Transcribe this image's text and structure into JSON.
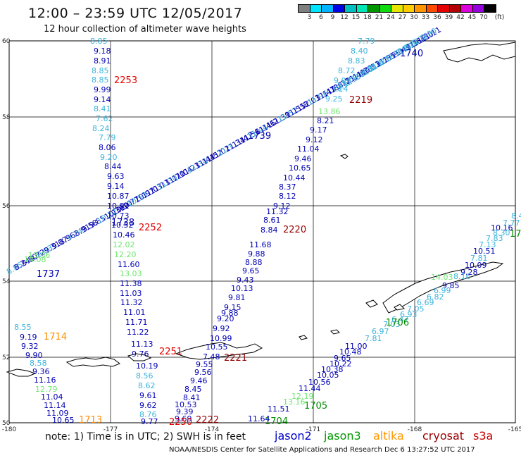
{
  "header": {
    "title": "12:00 – 23:59 UTC 12/05/2017",
    "subtitle": "12 hour collection of altimeter wave heights"
  },
  "color_scale": {
    "unit_label": "(ft)",
    "labels": [
      "3",
      "6",
      "9",
      "12",
      "15",
      "18",
      "21",
      "24",
      "27",
      "30",
      "33",
      "36",
      "39",
      "42",
      "45",
      "70"
    ],
    "colors": [
      "#7f7f7f",
      "#00e5ff",
      "#00b4ff",
      "#0000e6",
      "#00bfbf",
      "#00e6b4",
      "#009600",
      "#0fdc0f",
      "#e6e600",
      "#ffcc00",
      "#ff9600",
      "#ff4b00",
      "#e60000",
      "#b40000",
      "#dc00dc",
      "#9600dc",
      "#000000"
    ]
  },
  "map": {
    "lon_labels": [
      "-180",
      "-177",
      "-174",
      "-171",
      "-168",
      "-165"
    ],
    "lat_labels": [
      "60",
      "58",
      "56",
      "54",
      "52",
      "50"
    ],
    "colors": {
      "jason2": "#0000b4",
      "jason2_light": "#3cb4dc",
      "jason3": "#008c00",
      "jason3_light": "#6ee66e",
      "altika": "#ff8c00",
      "cryosat": "#b40000",
      "s3a": "#c80000"
    },
    "pass_labels": [
      {
        "text": "2253",
        "color": "#e60000"
      },
      {
        "text": "1740",
        "color": "#0000b4"
      },
      {
        "text": "2219",
        "color": "#960000"
      },
      {
        "text": "1739",
        "color": "#0000b4"
      },
      {
        "text": "2252",
        "color": "#e60000"
      },
      {
        "text": "2220",
        "color": "#960000"
      },
      {
        "text": "1737",
        "color": "#0000b4"
      },
      {
        "text": "1714",
        "color": "#ff8c00"
      },
      {
        "text": "2251",
        "color": "#e60000"
      },
      {
        "text": "2221",
        "color": "#960000"
      },
      {
        "text": "1706",
        "color": "#008c00"
      },
      {
        "text": "1713",
        "color": "#ff8c00"
      },
      {
        "text": "2250",
        "color": "#e60000"
      },
      {
        "text": "2222",
        "color": "#960000"
      },
      {
        "text": "1705",
        "color": "#008c00"
      },
      {
        "text": "1704",
        "color": "#008c00"
      },
      {
        "text": "1738",
        "color": "#0000b4"
      },
      {
        "text": "17",
        "color": "#008c00"
      }
    ],
    "track_a": [
      "8.85",
      "9.18",
      "8.91",
      "8.85",
      "8.85",
      "9.99",
      "9.14",
      "8.41",
      "7.62",
      "8.24",
      "7.79",
      "8.06",
      "9.20",
      "8.44",
      "9.63",
      "9.14",
      "10.87",
      "10.91",
      "10.73",
      "10.52",
      "10.46",
      "12.02",
      "12.20",
      "11.60",
      "13.03",
      "11.38",
      "11.03",
      "11.32",
      "11.01",
      "11.71",
      "11.22",
      "11.13",
      "9.76",
      "10.19",
      "8.56",
      "8.62",
      "9.61",
      "9.62",
      "8.76",
      "9.77",
      "9.76",
      "10.09",
      "10.08",
      "10.73"
    ],
    "track_b": [
      "7.79",
      "8.40",
      "8.83",
      "8.72",
      "9.03",
      "9.14",
      "9.25",
      "8.21",
      "9.17",
      "9.12",
      "11.04",
      "9.46",
      "10.65",
      "10.44",
      "8.37",
      "8.12",
      "9.12",
      "11.32",
      "8.61",
      "8.84",
      "11.68",
      "9.88",
      "8.88",
      "9.65",
      "9.43",
      "10.13",
      "9.81",
      "9.15",
      "9.88",
      "9.20",
      "9.92",
      "10.99",
      "10.55",
      "7.48",
      "9.55",
      "9.56",
      "9.46",
      "8.45",
      "8.41",
      "10.53",
      "9.39",
      "9.69"
    ],
    "track_b_green": [
      "13.86"
    ],
    "track_c": [
      "8.55",
      "9.19",
      "9.32",
      "9.90",
      "8.58",
      "9.36",
      "11.16",
      "12.79",
      "11.04",
      "11.14",
      "11.09",
      "10.65"
    ],
    "track_d": [
      "10.16",
      "7.77",
      "8.30",
      "7.83",
      "7.13",
      "10.51",
      "7.81",
      "10.09",
      "9.28",
      "8.16",
      "9.85",
      "6.99",
      "6.82",
      "6.69",
      "7.05",
      "6.93",
      "6.47",
      "7.03",
      "6.97",
      "7.81",
      "11.00",
      "10.48",
      "9.65",
      "10.22",
      "10.38",
      "10.05",
      "10.56",
      "11.44",
      "12.19",
      "13.16",
      "11.51",
      "11.64",
      "14.03",
      "8.4"
    ],
    "diag1_labels": [
      "8.85",
      "8.24",
      "9.00",
      "8.72",
      "9.03",
      "9.31",
      "9.07",
      "8.96",
      "9.24",
      "8.91",
      "9.58",
      "9.85",
      "10.12",
      "10.36",
      "10.10",
      "10.77",
      "10.53",
      "10.97",
      "11.03",
      "11.13",
      "11.30",
      "11.70",
      "11.04",
      "11.23",
      "11.34",
      "11.44",
      "11.52",
      "11.02",
      "11.11",
      "11.34",
      "11.41",
      "11.58",
      "11.44",
      "11.46",
      "11.21",
      "11.39",
      "11.52",
      "11.55",
      "11.81",
      "12.03",
      "11.96",
      "11.47",
      "11.88",
      "11.72",
      "11.61",
      "11.40",
      "11.33",
      "10.53",
      "11.62",
      "11.85",
      "11.90",
      "11.49",
      "11.73",
      "11.66",
      "11.50",
      "11.11"
    ],
    "diag1_green": [
      "14.08",
      "13.56"
    ],
    "diag2_labels": [
      "8.12",
      "8.36",
      "8.60",
      "8.81",
      "9.02",
      "9.18",
      "9.33",
      "9.49",
      "9.62",
      "9.77",
      "9.90"
    ]
  },
  "notes": {
    "note_text": "note: 1) Time is in UTC; 2) SWH is in feet",
    "legend": [
      {
        "label": "jason2",
        "color": "#0000cc"
      },
      {
        "label": "jason3",
        "color": "#009900"
      },
      {
        "label": "altika",
        "color": "#ff9900"
      },
      {
        "label": "cryosat",
        "color": "#990000"
      },
      {
        "label": "s3a",
        "color": "#cc0000"
      }
    ],
    "credit": "NOAA/NESDIS Center for Satellite Applications and Research    Dec  6 13:27:52 UTC 2017"
  }
}
